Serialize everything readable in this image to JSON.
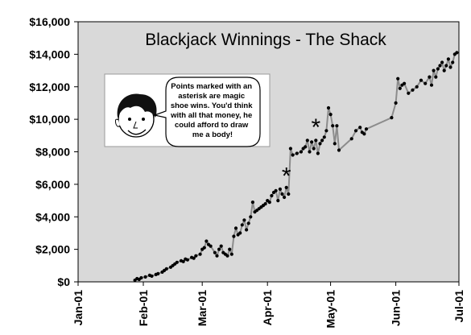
{
  "chart_data": {
    "type": "line",
    "title": "Blackjack Winnings - The Shack",
    "xlabel": "",
    "ylabel": "",
    "ylim": [
      0,
      16000
    ],
    "yticks": [
      0,
      2000,
      4000,
      6000,
      8000,
      10000,
      12000,
      14000,
      16000
    ],
    "ytick_labels": [
      "$0",
      "$2,000",
      "$4,000",
      "$6,000",
      "$8,000",
      "$10,000",
      "$12,000",
      "$14,000",
      "$16,000"
    ],
    "xlim": [
      "2001-01-01",
      "2001-07-01"
    ],
    "xticks": [
      "2001-01-01",
      "2001-02-01",
      "2001-03-01",
      "2001-04-01",
      "2001-05-01",
      "2001-06-01",
      "2001-07-01"
    ],
    "xtick_labels": [
      "Jan-01",
      "Feb-01",
      "Mar-01",
      "Apr-01",
      "May-01",
      "Jun-01",
      "Jul-01"
    ],
    "grid": false,
    "plot_background": "#d9d9d9",
    "line_color": "#8c8c8c",
    "marker_color": "#000000",
    "series": [
      {
        "values": [
          [
            "2001-01-28",
            100
          ],
          [
            "2001-01-29",
            200
          ],
          [
            "2001-01-30",
            150
          ],
          [
            "2001-01-31",
            250
          ],
          [
            "2001-02-02",
            300
          ],
          [
            "2001-02-04",
            400
          ],
          [
            "2001-02-05",
            350
          ],
          [
            "2001-02-07",
            450
          ],
          [
            "2001-02-08",
            500
          ],
          [
            "2001-02-10",
            600
          ],
          [
            "2001-02-11",
            700
          ],
          [
            "2001-02-12",
            800
          ],
          [
            "2001-02-14",
            900
          ],
          [
            "2001-02-15",
            1000
          ],
          [
            "2001-02-16",
            1100
          ],
          [
            "2001-02-17",
            1200
          ],
          [
            "2001-02-19",
            1300
          ],
          [
            "2001-02-20",
            1250
          ],
          [
            "2001-02-21",
            1400
          ],
          [
            "2001-02-22",
            1350
          ],
          [
            "2001-02-24",
            1500
          ],
          [
            "2001-02-25",
            1450
          ],
          [
            "2001-02-26",
            1600
          ],
          [
            "2001-02-28",
            1700
          ],
          [
            "2001-03-01",
            2000
          ],
          [
            "2001-03-02",
            2100
          ],
          [
            "2001-03-03",
            2500
          ],
          [
            "2001-03-04",
            2300
          ],
          [
            "2001-03-05",
            2200
          ],
          [
            "2001-03-07",
            1800
          ],
          [
            "2001-03-08",
            1600
          ],
          [
            "2001-03-09",
            2000
          ],
          [
            "2001-03-10",
            2200
          ],
          [
            "2001-03-11",
            1800
          ],
          [
            "2001-03-12",
            1700
          ],
          [
            "2001-03-13",
            1600
          ],
          [
            "2001-03-14",
            2000
          ],
          [
            "2001-03-15",
            1700
          ],
          [
            "2001-03-16",
            2800
          ],
          [
            "2001-03-17",
            3300
          ],
          [
            "2001-03-18",
            2900
          ],
          [
            "2001-03-19",
            3000
          ],
          [
            "2001-03-20",
            3500
          ],
          [
            "2001-03-21",
            3800
          ],
          [
            "2001-03-22",
            3200
          ],
          [
            "2001-03-23",
            3600
          ],
          [
            "2001-03-24",
            4000
          ],
          [
            "2001-03-25",
            4900
          ],
          [
            "2001-03-26",
            4300
          ],
          [
            "2001-03-27",
            4400
          ],
          [
            "2001-03-28",
            4500
          ],
          [
            "2001-03-29",
            4600
          ],
          [
            "2001-03-30",
            4700
          ],
          [
            "2001-03-31",
            4800
          ],
          [
            "2001-04-01",
            5000
          ],
          [
            "2001-04-02",
            4900
          ],
          [
            "2001-04-03",
            5300
          ],
          [
            "2001-04-04",
            5500
          ],
          [
            "2001-04-05",
            5600
          ],
          [
            "2001-04-06",
            5000
          ],
          [
            "2001-04-07",
            5700
          ],
          [
            "2001-04-08",
            5400
          ],
          [
            "2001-04-09",
            5200
          ],
          [
            "2001-04-10",
            5800
          ],
          [
            "2001-04-11",
            5400
          ],
          [
            "2001-04-12",
            8200
          ],
          [
            "2001-04-13",
            7800
          ],
          [
            "2001-04-15",
            7900
          ],
          [
            "2001-04-17",
            8000
          ],
          [
            "2001-04-18",
            8200
          ],
          [
            "2001-04-19",
            8300
          ],
          [
            "2001-04-20",
            8700
          ],
          [
            "2001-04-21",
            8000
          ],
          [
            "2001-04-22",
            8600
          ],
          [
            "2001-04-23",
            8200
          ],
          [
            "2001-04-24",
            8700
          ],
          [
            "2001-04-25",
            7900
          ],
          [
            "2001-04-26",
            8500
          ],
          [
            "2001-04-27",
            8700
          ],
          [
            "2001-04-28",
            8900
          ],
          [
            "2001-04-29",
            9300
          ],
          [
            "2001-04-30",
            10700
          ],
          [
            "2001-05-01",
            10300
          ],
          [
            "2001-05-02",
            9600
          ],
          [
            "2001-05-03",
            8500
          ],
          [
            "2001-05-04",
            9600
          ],
          [
            "2001-05-05",
            8100
          ],
          [
            "2001-05-11",
            8800
          ],
          [
            "2001-05-13",
            9300
          ],
          [
            "2001-05-15",
            9500
          ],
          [
            "2001-05-16",
            9200
          ],
          [
            "2001-05-17",
            9100
          ],
          [
            "2001-05-18",
            9400
          ],
          [
            "2001-05-30",
            10100
          ],
          [
            "2001-06-01",
            11000
          ],
          [
            "2001-06-02",
            12500
          ],
          [
            "2001-06-03",
            11900
          ],
          [
            "2001-06-04",
            12100
          ],
          [
            "2001-06-05",
            12200
          ],
          [
            "2001-06-07",
            11600
          ],
          [
            "2001-06-09",
            11800
          ],
          [
            "2001-06-11",
            12000
          ],
          [
            "2001-06-13",
            12400
          ],
          [
            "2001-06-15",
            12200
          ],
          [
            "2001-06-17",
            12600
          ],
          [
            "2001-06-18",
            12100
          ],
          [
            "2001-06-19",
            13000
          ],
          [
            "2001-06-20",
            12600
          ],
          [
            "2001-06-21",
            13100
          ],
          [
            "2001-06-22",
            13300
          ],
          [
            "2001-06-23",
            13500
          ],
          [
            "2001-06-24",
            13000
          ],
          [
            "2001-06-25",
            13300
          ],
          [
            "2001-06-26",
            13700
          ],
          [
            "2001-06-27",
            13200
          ],
          [
            "2001-06-28",
            13500
          ],
          [
            "2001-06-29",
            14000
          ],
          [
            "2001-06-30",
            14100
          ]
        ]
      }
    ],
    "annotations": [
      {
        "text": "*",
        "x": "2001-04-10",
        "y": 6700
      },
      {
        "text": "*",
        "x": "2001-04-24",
        "y": 9700
      }
    ],
    "note": {
      "lines": [
        "Points marked with an",
        "asterisk are magic",
        "shoe wins.  You'd think",
        "with all that money, he",
        "could afford to draw",
        "me a body!"
      ],
      "icon": "smiley-face-icon"
    }
  }
}
